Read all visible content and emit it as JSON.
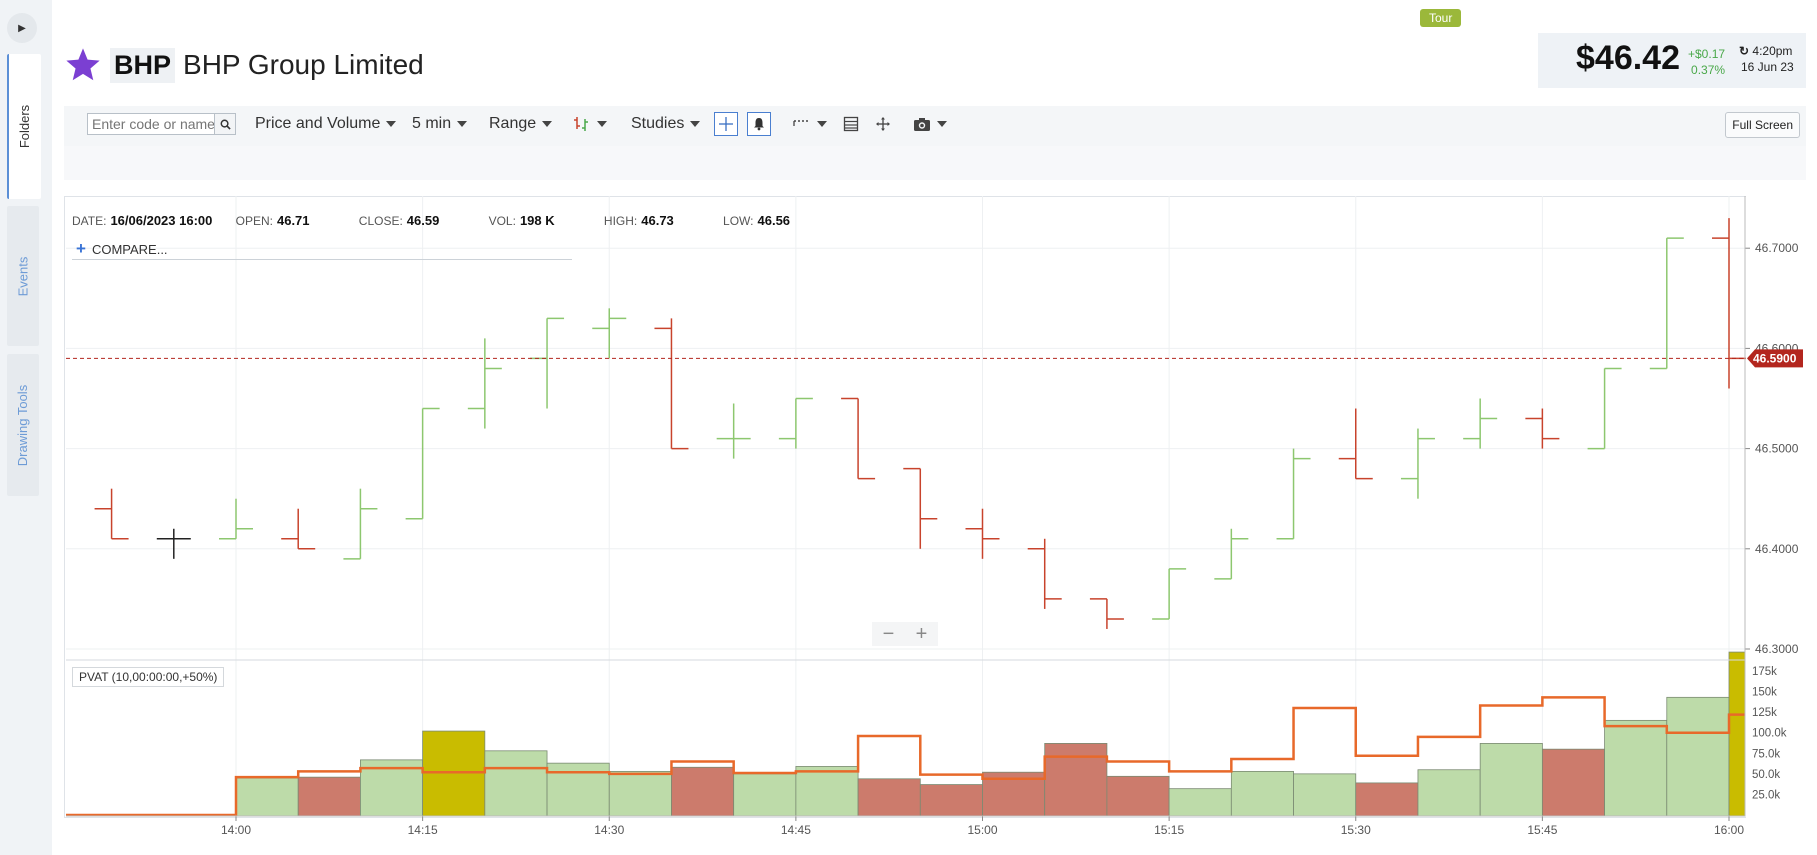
{
  "sidebar": {
    "tabs": [
      {
        "label": "Folders"
      },
      {
        "label": "Events"
      },
      {
        "label": "Drawing Tools"
      }
    ]
  },
  "header": {
    "ticker": "BHP",
    "company": "BHP Group Limited",
    "tour_label": "Tour"
  },
  "quote": {
    "price": "$46.42",
    "change": "+$0.17",
    "change_pct": "0.37%",
    "time": "4:20pm",
    "date": "16 Jun 23"
  },
  "toolbar": {
    "code_placeholder": "Enter code or name",
    "chart_type": "Price and Volume",
    "interval": "5 min",
    "range": "Range",
    "studies": "Studies",
    "full_screen": "Full Screen"
  },
  "info": {
    "date_label": "DATE:",
    "date": "16/06/2023 16:00",
    "open_label": "OPEN:",
    "open": "46.71",
    "close_label": "CLOSE:",
    "close": "46.59",
    "vol_label": "VOL:",
    "vol": "198 K",
    "high_label": "HIGH:",
    "high": "46.73",
    "low_label": "LOW:",
    "low": "46.56",
    "compare": "COMPARE..."
  },
  "pvat_label": "PVAT (10,00:00:00,+50%)",
  "colors": {
    "up": "#8dc76f",
    "down": "#c8432c",
    "neutral": "#222222",
    "vol_up": "#bddba9",
    "vol_down": "#cc7b6c",
    "vol_high": "#c9bc00",
    "pvat_line": "#e8692a",
    "last_price": "#b3261e",
    "accent": "#7b3fd2"
  },
  "chart_data": {
    "type": "ohlc",
    "x_ticks": [
      "14:00",
      "14:15",
      "14:30",
      "14:45",
      "15:00",
      "15:15",
      "15:30",
      "15:45",
      "16:00"
    ],
    "price_ticks": [
      "46.3000",
      "46.4000",
      "46.5000",
      "46.6000",
      "46.7000"
    ],
    "ylim": [
      46.29,
      46.75
    ],
    "last_price": 46.59,
    "last_price_label": "46.5900",
    "bars": [
      {
        "time": "13:50",
        "o": 46.44,
        "h": 46.46,
        "l": 46.41,
        "c": 46.41
      },
      {
        "time": "13:55",
        "o": 46.41,
        "h": 46.42,
        "l": 46.39,
        "c": 46.41
      },
      {
        "time": "14:00",
        "o": 46.41,
        "h": 46.45,
        "l": 46.41,
        "c": 46.42
      },
      {
        "time": "14:05",
        "o": 46.41,
        "h": 46.44,
        "l": 46.4,
        "c": 46.4
      },
      {
        "time": "14:10",
        "o": 46.39,
        "h": 46.46,
        "l": 46.39,
        "c": 46.44
      },
      {
        "time": "14:15",
        "o": 46.43,
        "h": 46.54,
        "l": 46.43,
        "c": 46.54
      },
      {
        "time": "14:20",
        "o": 46.54,
        "h": 46.61,
        "l": 46.52,
        "c": 46.58
      },
      {
        "time": "14:25",
        "o": 46.59,
        "h": 46.63,
        "l": 46.54,
        "c": 46.63
      },
      {
        "time": "14:30",
        "o": 46.62,
        "h": 46.64,
        "l": 46.59,
        "c": 46.63
      },
      {
        "time": "14:35",
        "o": 46.62,
        "h": 46.63,
        "l": 46.5,
        "c": 46.5
      },
      {
        "time": "14:40",
        "o": 46.51,
        "h": 46.545,
        "l": 46.49,
        "c": 46.51
      },
      {
        "time": "14:45",
        "o": 46.51,
        "h": 46.55,
        "l": 46.5,
        "c": 46.55
      },
      {
        "time": "14:50",
        "o": 46.55,
        "h": 46.55,
        "l": 46.47,
        "c": 46.47
      },
      {
        "time": "14:55",
        "o": 46.48,
        "h": 46.48,
        "l": 46.4,
        "c": 46.43
      },
      {
        "time": "15:00",
        "o": 46.42,
        "h": 46.44,
        "l": 46.39,
        "c": 46.41
      },
      {
        "time": "15:05",
        "o": 46.4,
        "h": 46.41,
        "l": 46.34,
        "c": 46.35
      },
      {
        "time": "15:10",
        "o": 46.35,
        "h": 46.35,
        "l": 46.32,
        "c": 46.33
      },
      {
        "time": "15:15",
        "o": 46.33,
        "h": 46.38,
        "l": 46.33,
        "c": 46.38
      },
      {
        "time": "15:20",
        "o": 46.37,
        "h": 46.42,
        "l": 46.37,
        "c": 46.41
      },
      {
        "time": "15:25",
        "o": 46.41,
        "h": 46.5,
        "l": 46.41,
        "c": 46.49
      },
      {
        "time": "15:30",
        "o": 46.49,
        "h": 46.54,
        "l": 46.47,
        "c": 46.47
      },
      {
        "time": "15:35",
        "o": 46.47,
        "h": 46.52,
        "l": 46.45,
        "c": 46.51
      },
      {
        "time": "15:40",
        "o": 46.51,
        "h": 46.55,
        "l": 46.5,
        "c": 46.53
      },
      {
        "time": "15:45",
        "o": 46.53,
        "h": 46.54,
        "l": 46.5,
        "c": 46.51
      },
      {
        "time": "15:50",
        "o": 46.5,
        "h": 46.58,
        "l": 46.5,
        "c": 46.58
      },
      {
        "time": "15:55",
        "o": 46.58,
        "h": 46.71,
        "l": 46.58,
        "c": 46.71
      },
      {
        "time": "16:00",
        "o": 46.71,
        "h": 46.73,
        "l": 46.56,
        "c": 46.59
      }
    ],
    "volume_ticks": [
      "25.0k",
      "50.0k",
      "75.0k",
      "100.0k",
      "125k",
      "150k",
      "175k"
    ],
    "volume_max": 198000,
    "volume_profile": [
      {
        "start": "13:45",
        "end": "14:00",
        "volume": 0,
        "avg": 0,
        "dir": "up"
      },
      {
        "start": "14:00",
        "end": "14:05",
        "volume": 45000,
        "avg": 46000,
        "dir": "up"
      },
      {
        "start": "14:05",
        "end": "14:10",
        "volume": 46000,
        "avg": 53000,
        "dir": "down"
      },
      {
        "start": "14:10",
        "end": "14:15",
        "volume": 67000,
        "avg": 57000,
        "dir": "up"
      },
      {
        "start": "14:15",
        "end": "14:20",
        "volume": 102000,
        "avg": 52000,
        "dir": "high"
      },
      {
        "start": "14:20",
        "end": "14:25",
        "volume": 78000,
        "avg": 57000,
        "dir": "up"
      },
      {
        "start": "14:25",
        "end": "14:30",
        "volume": 63000,
        "avg": 52000,
        "dir": "up"
      },
      {
        "start": "14:30",
        "end": "14:35",
        "volume": 53000,
        "avg": 50000,
        "dir": "up"
      },
      {
        "start": "14:35",
        "end": "14:40",
        "volume": 58000,
        "avg": 65000,
        "dir": "down"
      },
      {
        "start": "14:40",
        "end": "14:45",
        "volume": 50000,
        "avg": 51000,
        "dir": "up"
      },
      {
        "start": "14:45",
        "end": "14:50",
        "volume": 59000,
        "avg": 53000,
        "dir": "up"
      },
      {
        "start": "14:50",
        "end": "14:55",
        "volume": 44000,
        "avg": 96000,
        "dir": "down"
      },
      {
        "start": "14:55",
        "end": "15:00",
        "volume": 37000,
        "avg": 49000,
        "dir": "down"
      },
      {
        "start": "15:00",
        "end": "15:05",
        "volume": 52000,
        "avg": 44000,
        "dir": "down"
      },
      {
        "start": "15:05",
        "end": "15:10",
        "volume": 87000,
        "avg": 71000,
        "dir": "down"
      },
      {
        "start": "15:10",
        "end": "15:15",
        "volume": 47000,
        "avg": 65000,
        "dir": "down"
      },
      {
        "start": "15:15",
        "end": "15:20",
        "volume": 32000,
        "avg": 53000,
        "dir": "up"
      },
      {
        "start": "15:20",
        "end": "15:25",
        "volume": 53000,
        "avg": 68000,
        "dir": "up"
      },
      {
        "start": "15:25",
        "end": "15:30",
        "volume": 50000,
        "avg": 130000,
        "dir": "up"
      },
      {
        "start": "15:30",
        "end": "15:35",
        "volume": 39000,
        "avg": 72000,
        "dir": "down"
      },
      {
        "start": "15:35",
        "end": "15:40",
        "volume": 55000,
        "avg": 95000,
        "dir": "up"
      },
      {
        "start": "15:40",
        "end": "15:45",
        "volume": 87000,
        "avg": 133000,
        "dir": "up"
      },
      {
        "start": "15:45",
        "end": "15:50",
        "volume": 80000,
        "avg": 143000,
        "dir": "down"
      },
      {
        "start": "15:50",
        "end": "15:55",
        "volume": 115000,
        "avg": 108000,
        "dir": "up"
      },
      {
        "start": "15:55",
        "end": "16:00",
        "volume": 143000,
        "avg": 100000,
        "dir": "up"
      },
      {
        "start": "16:00",
        "end": "16:05",
        "volume": 198000,
        "avg": 122000,
        "dir": "high"
      }
    ]
  }
}
